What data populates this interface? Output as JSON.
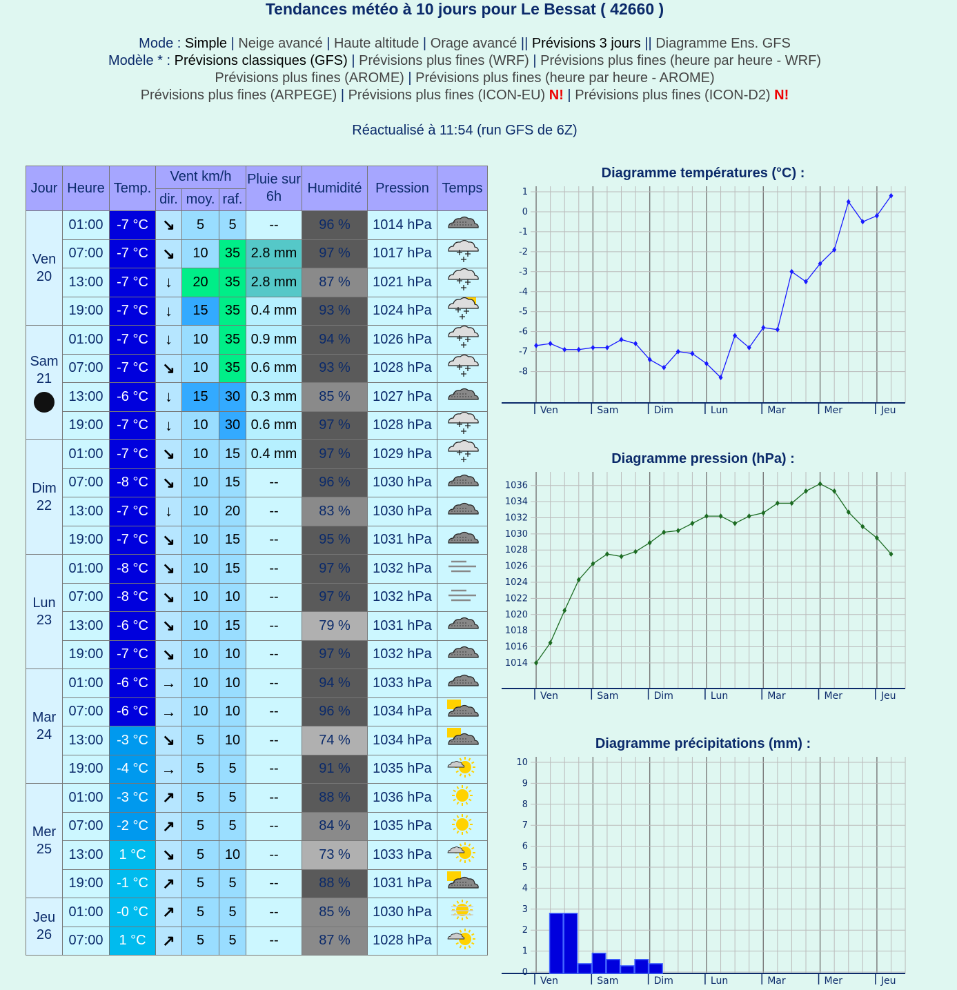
{
  "page_title": "Tendances météo à 10 jours pour Le Bessat ( 42660 )",
  "nav": {
    "mode_label": "Mode",
    "mode_items": [
      "Simple",
      "Neige avancé",
      "Haute altitude",
      "Orage avancé"
    ],
    "prev3": "Prévisions 3 jours",
    "ens": "Diagramme Ens. GFS",
    "modele_label": "Modèle",
    "modele_items_line1": [
      "Prévisions classiques (GFS)",
      "Prévisions plus fines (WRF)",
      "Prévisions plus fines (heure par heure - WRF)"
    ],
    "modele_items_line2": [
      "Prévisions plus fines (AROME)",
      "Prévisions plus fines (heure par heure - AROME)"
    ],
    "modele_items_line3": [
      "Prévisions plus fines (ARPEGE)",
      "Prévisions plus fines (ICON-EU)",
      "Prévisions plus fines (ICON-D2)"
    ],
    "new_badge": "N!"
  },
  "updated": "Réactualisé à 11:54 (run GFS de 6Z)",
  "table": {
    "headers": {
      "jour": "Jour",
      "heure": "Heure",
      "temp": "Temp.",
      "vent": "Vent km/h",
      "dir": "dir.",
      "moy": "moy.",
      "raf": "raf.",
      "pluie": "Pluie sur 6h",
      "humidite": "Humidité",
      "pression": "Pression",
      "temps": "Temps"
    },
    "days": [
      {
        "name": "Ven",
        "num": "20",
        "moon": false,
        "rows": [
          {
            "h": "01:00",
            "t": "-7 °C",
            "dir": "↘",
            "moy": "5",
            "raf": "5",
            "rain": "--",
            "hum": "96 %",
            "p": "1014 hPa",
            "wx": "cloud"
          },
          {
            "h": "07:00",
            "t": "-7 °C",
            "dir": "↘",
            "moy": "10",
            "raf": "35",
            "rain": "2.8 mm",
            "hum": "97 %",
            "p": "1017 hPa",
            "wx": "snow"
          },
          {
            "h": "13:00",
            "t": "-7 °C",
            "dir": "↓",
            "moy": "20",
            "raf": "35",
            "rain": "2.8 mm",
            "hum": "87 %",
            "p": "1021 hPa",
            "wx": "snow"
          },
          {
            "h": "19:00",
            "t": "-7 °C",
            "dir": "↓",
            "moy": "15",
            "raf": "35",
            "rain": "0.4 mm",
            "hum": "93 %",
            "p": "1024 hPa",
            "wx": "snow-sun"
          }
        ]
      },
      {
        "name": "Sam",
        "num": "21",
        "moon": true,
        "rows": [
          {
            "h": "01:00",
            "t": "-7 °C",
            "dir": "↓",
            "moy": "10",
            "raf": "35",
            "rain": "0.9 mm",
            "hum": "94 %",
            "p": "1026 hPa",
            "wx": "snow"
          },
          {
            "h": "07:00",
            "t": "-7 °C",
            "dir": "↘",
            "moy": "10",
            "raf": "35",
            "rain": "0.6 mm",
            "hum": "93 %",
            "p": "1028 hPa",
            "wx": "snow"
          },
          {
            "h": "13:00",
            "t": "-6 °C",
            "dir": "↓",
            "moy": "15",
            "raf": "30",
            "rain": "0.3 mm",
            "hum": "85 %",
            "p": "1027 hPa",
            "wx": "cloud"
          },
          {
            "h": "19:00",
            "t": "-7 °C",
            "dir": "↓",
            "moy": "10",
            "raf": "30",
            "rain": "0.6 mm",
            "hum": "97 %",
            "p": "1028 hPa",
            "wx": "snow"
          }
        ]
      },
      {
        "name": "Dim",
        "num": "22",
        "moon": false,
        "rows": [
          {
            "h": "01:00",
            "t": "-7 °C",
            "dir": "↘",
            "moy": "10",
            "raf": "15",
            "rain": "0.4 mm",
            "hum": "97 %",
            "p": "1029 hPa",
            "wx": "snow"
          },
          {
            "h": "07:00",
            "t": "-8 °C",
            "dir": "↘",
            "moy": "10",
            "raf": "15",
            "rain": "--",
            "hum": "96 %",
            "p": "1030 hPa",
            "wx": "cloud"
          },
          {
            "h": "13:00",
            "t": "-7 °C",
            "dir": "↓",
            "moy": "10",
            "raf": "20",
            "rain": "--",
            "hum": "83 %",
            "p": "1030 hPa",
            "wx": "cloud"
          },
          {
            "h": "19:00",
            "t": "-7 °C",
            "dir": "↘",
            "moy": "10",
            "raf": "15",
            "rain": "--",
            "hum": "95 %",
            "p": "1031 hPa",
            "wx": "cloud"
          }
        ]
      },
      {
        "name": "Lun",
        "num": "23",
        "moon": false,
        "rows": [
          {
            "h": "01:00",
            "t": "-8 °C",
            "dir": "↘",
            "moy": "10",
            "raf": "15",
            "rain": "--",
            "hum": "97 %",
            "p": "1032 hPa",
            "wx": "fog"
          },
          {
            "h": "07:00",
            "t": "-8 °C",
            "dir": "↘",
            "moy": "10",
            "raf": "10",
            "rain": "--",
            "hum": "97 %",
            "p": "1032 hPa",
            "wx": "fog"
          },
          {
            "h": "13:00",
            "t": "-6 °C",
            "dir": "↘",
            "moy": "10",
            "raf": "15",
            "rain": "--",
            "hum": "79 %",
            "p": "1031 hPa",
            "wx": "cloud"
          },
          {
            "h": "19:00",
            "t": "-7 °C",
            "dir": "↘",
            "moy": "10",
            "raf": "10",
            "rain": "--",
            "hum": "97 %",
            "p": "1032 hPa",
            "wx": "cloud"
          }
        ]
      },
      {
        "name": "Mar",
        "num": "24",
        "moon": false,
        "rows": [
          {
            "h": "01:00",
            "t": "-6 °C",
            "dir": "→",
            "moy": "10",
            "raf": "10",
            "rain": "--",
            "hum": "94 %",
            "p": "1033 hPa",
            "wx": "cloud"
          },
          {
            "h": "07:00",
            "t": "-6 °C",
            "dir": "→",
            "moy": "10",
            "raf": "10",
            "rain": "--",
            "hum": "96 %",
            "p": "1034 hPa",
            "wx": "cloud-sun"
          },
          {
            "h": "13:00",
            "t": "-3 °C",
            "dir": "↘",
            "moy": "5",
            "raf": "10",
            "rain": "--",
            "hum": "74 %",
            "p": "1034 hPa",
            "wx": "cloud-sun"
          },
          {
            "h": "19:00",
            "t": "-4 °C",
            "dir": "→",
            "moy": "5",
            "raf": "5",
            "rain": "--",
            "hum": "91 %",
            "p": "1035 hPa",
            "wx": "sun-cloud"
          }
        ]
      },
      {
        "name": "Mer",
        "num": "25",
        "moon": false,
        "rows": [
          {
            "h": "01:00",
            "t": "-3 °C",
            "dir": "↗",
            "moy": "5",
            "raf": "5",
            "rain": "--",
            "hum": "88 %",
            "p": "1036 hPa",
            "wx": "sun"
          },
          {
            "h": "07:00",
            "t": "-2 °C",
            "dir": "↗",
            "moy": "5",
            "raf": "5",
            "rain": "--",
            "hum": "84 %",
            "p": "1035 hPa",
            "wx": "sun"
          },
          {
            "h": "13:00",
            "t": "1 °C",
            "dir": "↘",
            "moy": "5",
            "raf": "10",
            "rain": "--",
            "hum": "73 %",
            "p": "1033 hPa",
            "wx": "sun-cloud"
          },
          {
            "h": "19:00",
            "t": "-1 °C",
            "dir": "↗",
            "moy": "5",
            "raf": "5",
            "rain": "--",
            "hum": "88 %",
            "p": "1031 hPa",
            "wx": "cloud-sun"
          }
        ]
      },
      {
        "name": "Jeu",
        "num": "26",
        "moon": false,
        "rows": [
          {
            "h": "01:00",
            "t": "-0 °C",
            "dir": "↗",
            "moy": "5",
            "raf": "5",
            "rain": "--",
            "hum": "85 %",
            "p": "1030 hPa",
            "wx": "haze"
          },
          {
            "h": "07:00",
            "t": "1 °C",
            "dir": "↗",
            "moy": "5",
            "raf": "5",
            "rain": "--",
            "hum": "87 %",
            "p": "1028 hPa",
            "wx": "sun-cloud"
          }
        ]
      }
    ]
  },
  "colors": {
    "temp_cold": "#0000dd",
    "temp_mid": "#0099ee",
    "temp_warm": "#00bbee",
    "hum_dark": "#5a5a5a",
    "hum_mid": "#8a8a8a",
    "hum_light": "#b0b0b0",
    "wind_low": "#99ddff",
    "wind_mid": "#33aaff",
    "wind_high": "#00ee88",
    "rain_heavy": "#55c8c8",
    "rain_light": "#ccf7ff",
    "header": "#a6a6ff",
    "navy": "#0b2a6a"
  },
  "charts": {
    "day_labels": [
      "Ven",
      "Sam",
      "Dim",
      "Lun",
      "Mar",
      "Mer",
      "Jeu"
    ],
    "temperature": {
      "title": "Diagramme températures (°C) :",
      "ticks": [
        1,
        0,
        -1,
        -2,
        -3,
        -4,
        -5,
        -6,
        -7,
        -8
      ],
      "ylim": [
        -9.5,
        1
      ],
      "values": [
        -6.7,
        -6.6,
        -6.9,
        -6.9,
        -6.8,
        -6.8,
        -6.4,
        -6.6,
        -7.4,
        -7.8,
        -7.0,
        -7.1,
        -7.6,
        -8.3,
        -6.2,
        -6.8,
        -5.8,
        -5.9,
        -3.0,
        -3.5,
        -2.6,
        -1.9,
        0.5,
        -0.5,
        -0.2,
        0.8
      ]
    },
    "pressure": {
      "title": "Diagramme pression (hPa) :",
      "ticks": [
        1036,
        1034,
        1032,
        1030,
        1028,
        1026,
        1024,
        1022,
        1020,
        1018,
        1016,
        1014
      ],
      "ylim": [
        1011,
        1037
      ],
      "values": [
        1014,
        1016.5,
        1020.5,
        1024.3,
        1026.3,
        1027.5,
        1027.2,
        1027.8,
        1028.9,
        1030.2,
        1030.4,
        1031.3,
        1032.2,
        1032.2,
        1031.3,
        1032.2,
        1032.6,
        1033.8,
        1033.8,
        1035.3,
        1036.2,
        1035.3,
        1032.7,
        1030.9,
        1029.5,
        1027.5
      ]
    },
    "precipitation": {
      "title": "Diagramme précipitations (mm) :",
      "ticks": [
        10,
        9,
        8,
        7,
        6,
        5,
        4,
        3,
        2,
        1,
        0
      ],
      "ylim": [
        0,
        10
      ],
      "values": [
        0,
        2.8,
        2.8,
        0.4,
        0.9,
        0.6,
        0.3,
        0.6,
        0.4,
        0,
        0,
        0,
        0,
        0,
        0,
        0,
        0,
        0,
        0,
        0,
        0,
        0,
        0,
        0,
        0,
        0
      ]
    }
  }
}
